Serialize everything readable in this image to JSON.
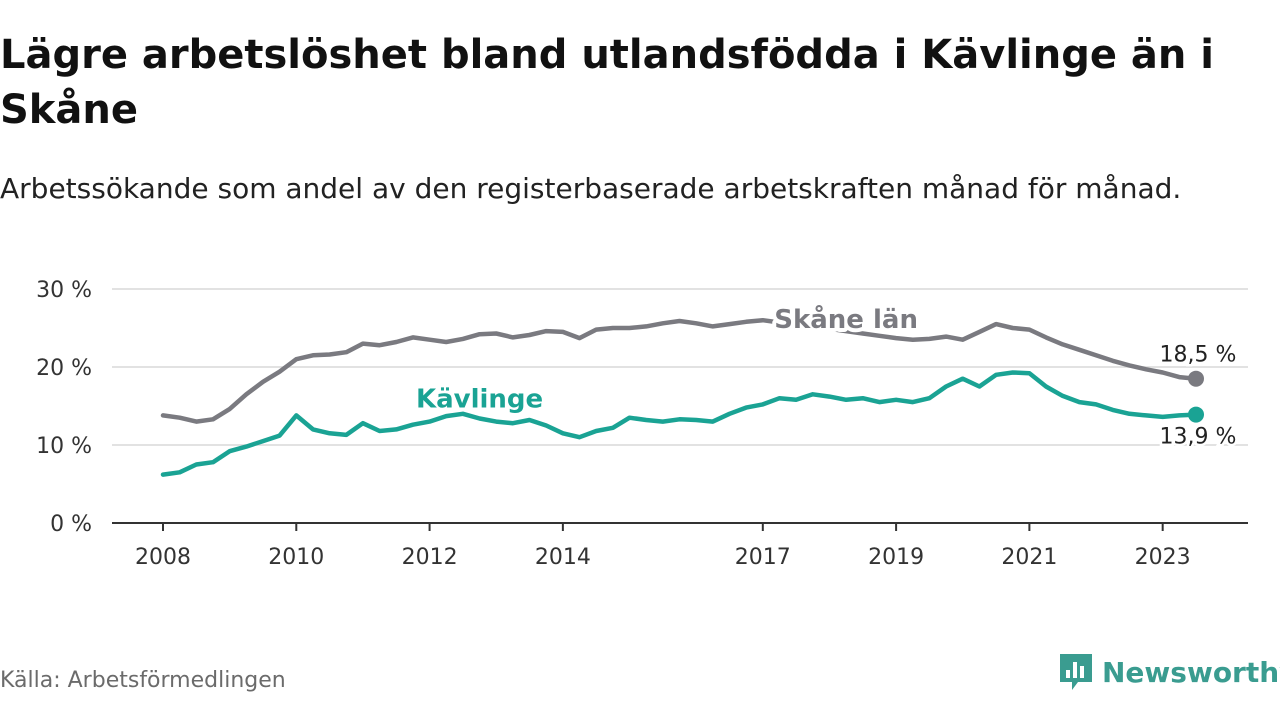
{
  "title": "Lägre arbetslöshet bland utlandsfödda i Kävlinge än i Skåne",
  "subtitle": "Arbetssökande som andel av den registerbaserade arbetskraften månad för månad.",
  "source": "Källa: Arbetsförmedlingen",
  "brand": {
    "name": "Newsworthy",
    "icon": "newsworthy-logo-icon",
    "color": "#3a9c90"
  },
  "chart_data": {
    "type": "line",
    "title": "Lägre arbetslöshet bland utlandsfödda i Kävlinge än i Skåne",
    "xlabel": "",
    "ylabel": "",
    "ylim": [
      0,
      30
    ],
    "xlim": [
      2008.0,
      2023.5
    ],
    "yticks": [
      0,
      10,
      20,
      30
    ],
    "ytick_labels": [
      "0 %",
      "10 %",
      "20 %",
      "30 %"
    ],
    "xticks": [
      2008,
      2010,
      2012,
      2014,
      2017,
      2019,
      2021,
      2023
    ],
    "xtick_labels": [
      "2008",
      "2010",
      "2012",
      "2014",
      "2017",
      "2019",
      "2021",
      "2023"
    ],
    "grid": true,
    "series": [
      {
        "name": "Skåne län",
        "color": "#7a7a80",
        "end_label": "18,5 %",
        "x": [
          2008.0,
          2008.25,
          2008.5,
          2008.75,
          2009.0,
          2009.25,
          2009.5,
          2009.75,
          2010.0,
          2010.25,
          2010.5,
          2010.75,
          2011.0,
          2011.25,
          2011.5,
          2011.75,
          2012.0,
          2012.25,
          2012.5,
          2012.75,
          2013.0,
          2013.25,
          2013.5,
          2013.75,
          2014.0,
          2014.25,
          2014.5,
          2014.75,
          2015.0,
          2015.25,
          2015.5,
          2015.75,
          2016.0,
          2016.25,
          2016.5,
          2016.75,
          2017.0,
          2017.25,
          2017.5,
          2017.75,
          2018.0,
          2018.25,
          2018.5,
          2018.75,
          2019.0,
          2019.25,
          2019.5,
          2019.75,
          2020.0,
          2020.25,
          2020.5,
          2020.75,
          2021.0,
          2021.25,
          2021.5,
          2021.75,
          2022.0,
          2022.25,
          2022.5,
          2022.75,
          2023.0,
          2023.25,
          2023.5
        ],
        "values": [
          13.8,
          13.5,
          13.0,
          13.3,
          14.6,
          16.5,
          18.1,
          19.4,
          21.0,
          21.5,
          21.6,
          21.9,
          23.0,
          22.8,
          23.2,
          23.8,
          23.5,
          23.2,
          23.6,
          24.2,
          24.3,
          23.8,
          24.1,
          24.6,
          24.5,
          23.7,
          24.8,
          25.0,
          25.0,
          25.2,
          25.6,
          25.9,
          25.6,
          25.2,
          25.5,
          25.8,
          26.0,
          25.7,
          25.5,
          25.2,
          24.9,
          24.6,
          24.3,
          24.0,
          23.7,
          23.5,
          23.6,
          23.9,
          23.5,
          24.5,
          25.5,
          25.0,
          24.8,
          23.8,
          22.9,
          22.2,
          21.5,
          20.8,
          20.2,
          19.7,
          19.3,
          18.7,
          18.5
        ]
      },
      {
        "name": "Kävlinge",
        "color": "#1aa394",
        "end_label": "13,9 %",
        "x": [
          2008.0,
          2008.25,
          2008.5,
          2008.75,
          2009.0,
          2009.25,
          2009.5,
          2009.75,
          2010.0,
          2010.25,
          2010.5,
          2010.75,
          2011.0,
          2011.25,
          2011.5,
          2011.75,
          2012.0,
          2012.25,
          2012.5,
          2012.75,
          2013.0,
          2013.25,
          2013.5,
          2013.75,
          2014.0,
          2014.25,
          2014.5,
          2014.75,
          2015.0,
          2015.25,
          2015.5,
          2015.75,
          2016.0,
          2016.25,
          2016.5,
          2016.75,
          2017.0,
          2017.25,
          2017.5,
          2017.75,
          2018.0,
          2018.25,
          2018.5,
          2018.75,
          2019.0,
          2019.25,
          2019.5,
          2019.75,
          2020.0,
          2020.25,
          2020.5,
          2020.75,
          2021.0,
          2021.25,
          2021.5,
          2021.75,
          2022.0,
          2022.25,
          2022.5,
          2022.75,
          2023.0,
          2023.25,
          2023.5
        ],
        "values": [
          6.2,
          6.5,
          7.5,
          7.8,
          9.2,
          9.8,
          10.5,
          11.2,
          13.8,
          12.0,
          11.5,
          11.3,
          12.8,
          11.8,
          12.0,
          12.6,
          13.0,
          13.7,
          14.0,
          13.4,
          13.0,
          12.8,
          13.2,
          12.5,
          11.5,
          11.0,
          11.8,
          12.2,
          13.5,
          13.2,
          13.0,
          13.3,
          13.2,
          13.0,
          14.0,
          14.8,
          15.2,
          16.0,
          15.8,
          16.5,
          16.2,
          15.8,
          16.0,
          15.5,
          15.8,
          15.5,
          16.0,
          17.5,
          18.5,
          17.5,
          19.0,
          19.3,
          19.2,
          17.5,
          16.3,
          15.5,
          15.2,
          14.5,
          14.0,
          13.8,
          13.6,
          13.8,
          13.9
        ]
      }
    ],
    "annotations": [
      {
        "text": "Skåne län",
        "series": "Skåne län",
        "x": 2018.25,
        "y": 25.0
      },
      {
        "text": "Kävlinge",
        "series": "Kävlinge",
        "x": 2012.75,
        "y": 14.8
      }
    ]
  }
}
